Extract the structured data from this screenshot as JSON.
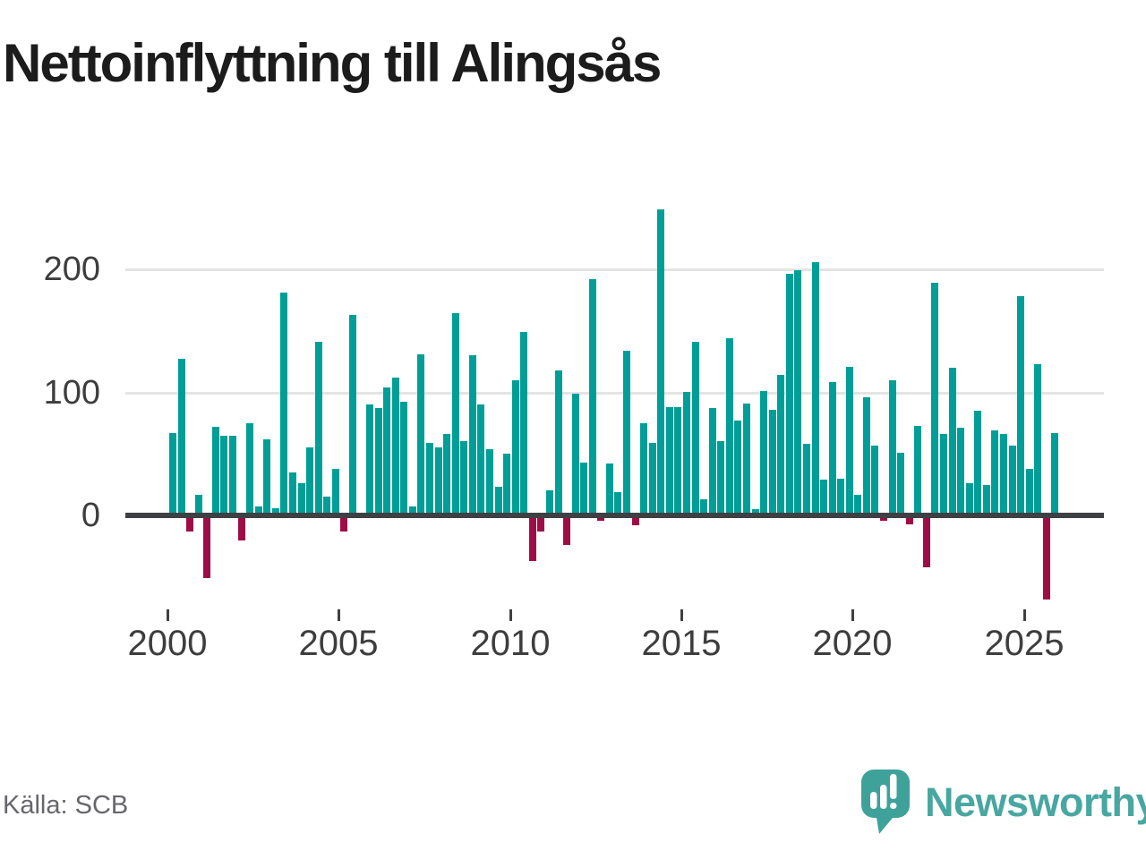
{
  "source": "Källa: SCB",
  "brand": {
    "name": "Newsworthy",
    "text_color": "#48a7a0",
    "icon_color": "#3EA29B",
    "icon_shade_color": "#35958e",
    "icon": "newsworthy-speech-bubble-barchart-icon"
  },
  "colors": {
    "positive": "#009e96",
    "negative": "#9d0e47",
    "axis": "#3e4043",
    "grid": "#e4e4e4",
    "tick_text": "#3d3d3d",
    "title": "#1c1c1c",
    "source_text": "#66666c",
    "background": "#ffffff"
  },
  "chart_data": {
    "type": "bar",
    "title": "Nettoinflyttning till Alingsås",
    "frequency": "quarterly",
    "xlabel": "",
    "ylabel": "",
    "yticks": [
      0,
      100,
      200
    ],
    "xticks": [
      2000,
      2005,
      2010,
      2015,
      2020,
      2025
    ],
    "ylim": [
      -80,
      260
    ],
    "grid": "horizontal",
    "legend": "none",
    "values_by_year": {
      "2000": [
        67,
        127,
        -13,
        17
      ],
      "2001": [
        -51,
        72,
        65,
        65
      ],
      "2002": [
        -20,
        75,
        7,
        62
      ],
      "2003": [
        6,
        181,
        35,
        26
      ],
      "2004": [
        55,
        141,
        15,
        38
      ],
      "2005": [
        -13,
        163,
        2,
        90
      ],
      "2006": [
        87,
        104,
        112,
        92
      ],
      "2007": [
        7,
        131,
        59,
        55
      ],
      "2008": [
        66,
        164,
        60,
        130
      ],
      "2009": [
        90,
        54,
        23,
        50
      ],
      "2010": [
        110,
        149,
        -37,
        -13
      ],
      "2011": [
        20,
        118,
        -24,
        99
      ],
      "2012": [
        43,
        192,
        -4,
        42
      ],
      "2013": [
        19,
        134,
        -8,
        75
      ],
      "2014": [
        59,
        249,
        88,
        88
      ],
      "2015": [
        100,
        141,
        13,
        87
      ],
      "2016": [
        60,
        144,
        77,
        91
      ],
      "2017": [
        5,
        101,
        86,
        114
      ],
      "2018": [
        196,
        199,
        58,
        206
      ],
      "2019": [
        29,
        108,
        30,
        121
      ],
      "2020": [
        17,
        96,
        57,
        -4
      ],
      "2021": [
        110,
        51,
        -7,
        73
      ],
      "2022": [
        -42,
        189,
        66,
        120
      ],
      "2023": [
        71,
        26,
        85,
        25
      ],
      "2024": [
        69,
        66,
        57,
        178
      ],
      "2025": [
        38,
        123,
        -68,
        67
      ]
    }
  }
}
